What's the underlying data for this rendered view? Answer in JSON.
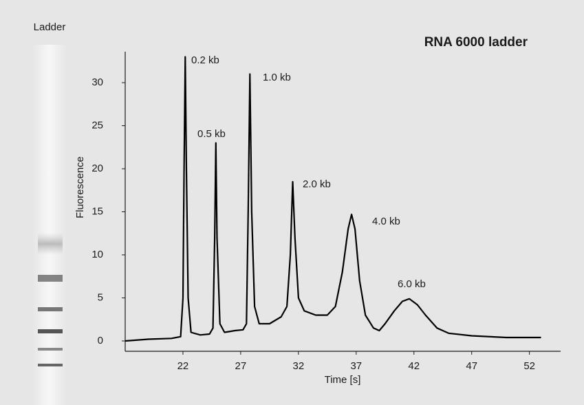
{
  "lane_label": "Ladder",
  "chart_data": {
    "type": "line",
    "title": "RNA 6000 ladder",
    "xlabel": "Time [s]",
    "ylabel": "Fluorescence",
    "color": "#000000",
    "xlim": [
      17,
      54.7
    ],
    "ylim": [
      -1.2,
      33.6
    ],
    "xticks": [
      22,
      27,
      32,
      37,
      42,
      47,
      52
    ],
    "yticks": [
      0,
      5,
      10,
      15,
      20,
      25,
      30
    ],
    "annotations": [
      "0.2 kb",
      "0.5 kb",
      "1.0 kb",
      "2.0 kb",
      "4.0 kb",
      "6.0 kb"
    ],
    "x": [
      17.0,
      19,
      21,
      21.8,
      22.0,
      22.1,
      22.2,
      22.3,
      22.45,
      22.7,
      23.5,
      24.3,
      24.6,
      24.75,
      24.85,
      24.95,
      25.2,
      25.6,
      26.5,
      27.2,
      27.5,
      27.65,
      27.8,
      27.95,
      28.2,
      28.6,
      29.5,
      30.5,
      31.0,
      31.3,
      31.5,
      31.7,
      32.0,
      32.5,
      33.5,
      34.5,
      35.2,
      35.8,
      36.3,
      36.6,
      36.9,
      37.3,
      37.8,
      38.5,
      39,
      39.5,
      40.3,
      41.0,
      41.6,
      42.3,
      43.0,
      44,
      45,
      47,
      50,
      53
    ],
    "values": [
      0,
      0.2,
      0.3,
      0.5,
      5,
      20,
      33,
      20,
      5,
      1,
      0.7,
      0.8,
      1.5,
      12,
      23,
      12,
      2,
      1,
      1.2,
      1.3,
      2,
      15,
      31,
      15,
      4,
      2,
      2,
      2.8,
      4,
      10,
      18.5,
      12,
      5,
      3.5,
      3,
      3,
      4,
      8,
      13,
      14.7,
      13,
      7,
      3,
      1.5,
      1.2,
      2,
      3.5,
      4.6,
      4.9,
      4.2,
      3,
      1.5,
      0.9,
      0.6,
      0.4,
      0.4
    ]
  }
}
